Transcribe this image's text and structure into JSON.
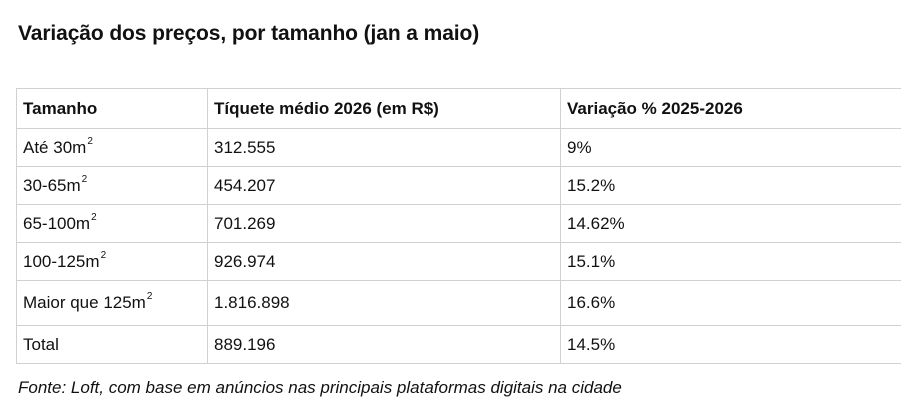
{
  "title": "Variação dos preços, por tamanho (jan a maio)",
  "table": {
    "headers": [
      "Tamanho",
      "Tíquete médio 2026 (em R$)",
      "Variação % 2025-2026"
    ],
    "rows": [
      {
        "size": "Até 30m",
        "sup": "2",
        "ticket": "312.555",
        "variation": "9%"
      },
      {
        "size": "30-65m",
        "sup": "2",
        "ticket": "454.207",
        "variation": "15.2%"
      },
      {
        "size": "65-100m",
        "sup": "2",
        "ticket": "701.269",
        "variation": "14.62%"
      },
      {
        "size": "100-125m",
        "sup": "2",
        "ticket": "926.974",
        "variation": "15.1%"
      },
      {
        "size": "Maior que 125m",
        "sup": "2",
        "ticket": "1.816.898",
        "variation": "16.6%"
      },
      {
        "size": "Total",
        "sup": "",
        "ticket": "889.196",
        "variation": "14.5%"
      }
    ]
  },
  "source": "Fonte: Loft, com base em anúncios nas principais plataformas digitais na cidade"
}
